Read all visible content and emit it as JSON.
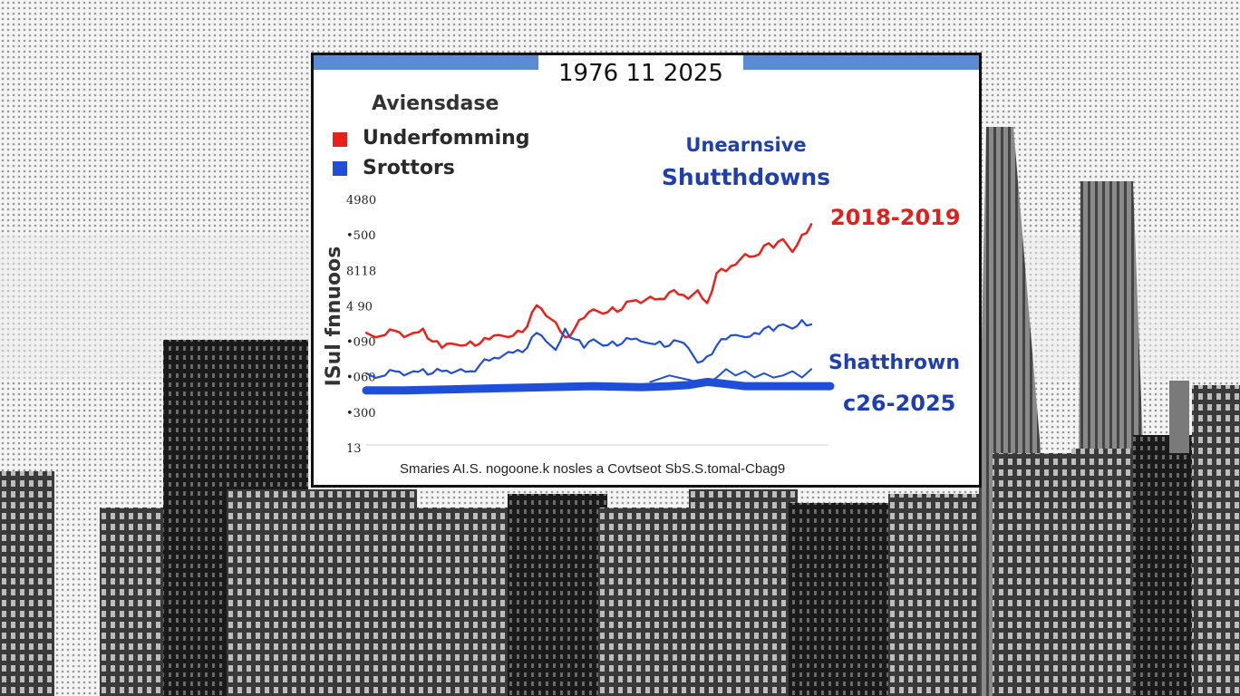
{
  "chart_data": {
    "type": "line",
    "title": "1976 11 2025",
    "legend_title": "Aviensdase",
    "legend": [
      {
        "label": "Underfomming",
        "color": "#e8211b"
      },
      {
        "label": "Srottors",
        "color": "#1f4fd8"
      }
    ],
    "ylabel": "ISul fnnuoos",
    "yticks": [
      "4980",
      "•500",
      "8118",
      "4 90",
      "•090",
      "•060",
      "•300",
      "13"
    ],
    "source": "Smaries AI.S. nogoone.k nosles a Covtseot SbS.S.tomal-Cbag9",
    "annotations": {
      "top_line1": "Unearnsive",
      "top_line2": "Shutthdowns",
      "red_period": "2018-2019",
      "blue_label": "Shatthrown",
      "blue_period": "c26-2025"
    },
    "x": {
      "start": 1976,
      "end": 2025
    },
    "y_range": [
      0,
      100
    ],
    "series": [
      {
        "name": "Underfomming",
        "color": "#e8211b",
        "values": [
          [
            1976,
            42
          ],
          [
            1978,
            41
          ],
          [
            1979,
            43
          ],
          [
            1980,
            40
          ],
          [
            1981,
            42
          ],
          [
            1982,
            44
          ],
          [
            1983,
            38
          ],
          [
            1984,
            35
          ],
          [
            1985,
            37
          ],
          [
            1986,
            36
          ],
          [
            1987,
            38
          ],
          [
            1988,
            37
          ],
          [
            1989,
            39
          ],
          [
            1990,
            41
          ],
          [
            1991,
            40
          ],
          [
            1992,
            43
          ],
          [
            1993,
            45
          ],
          [
            1994,
            55
          ],
          [
            1995,
            50
          ],
          [
            1996,
            47
          ],
          [
            1997,
            40
          ],
          [
            1998,
            44
          ],
          [
            1999,
            49
          ],
          [
            2000,
            53
          ],
          [
            2001,
            51
          ],
          [
            2002,
            54
          ],
          [
            2003,
            53
          ],
          [
            2004,
            57
          ],
          [
            2005,
            56
          ],
          [
            2006,
            59
          ],
          [
            2007,
            58
          ],
          [
            2008,
            61
          ],
          [
            2009,
            60
          ],
          [
            2010,
            58
          ],
          [
            2011,
            62
          ],
          [
            2012,
            56
          ],
          [
            2013,
            70
          ],
          [
            2014,
            71
          ],
          [
            2015,
            74
          ],
          [
            2016,
            79
          ],
          [
            2017,
            78
          ],
          [
            2018,
            83
          ],
          [
            2019,
            82
          ],
          [
            2020,
            86
          ],
          [
            2021,
            80
          ],
          [
            2022,
            88
          ],
          [
            2023,
            93
          ]
        ]
      },
      {
        "name": "Srottors",
        "color": "#1f4fd8",
        "values": [
          [
            1976,
            23
          ],
          [
            1978,
            22
          ],
          [
            1979,
            24
          ],
          [
            1980,
            22
          ],
          [
            1981,
            24
          ],
          [
            1982,
            25
          ],
          [
            1983,
            23
          ],
          [
            1984,
            24
          ],
          [
            1985,
            23
          ],
          [
            1986,
            25
          ],
          [
            1987,
            24
          ],
          [
            1988,
            27
          ],
          [
            1989,
            29
          ],
          [
            1990,
            30
          ],
          [
            1991,
            33
          ],
          [
            1992,
            34
          ],
          [
            1993,
            35
          ],
          [
            1994,
            42
          ],
          [
            1995,
            38
          ],
          [
            1996,
            34
          ],
          [
            1997,
            44
          ],
          [
            1998,
            39
          ],
          [
            1999,
            35
          ],
          [
            2000,
            39
          ],
          [
            2001,
            36
          ],
          [
            2002,
            38
          ],
          [
            2003,
            37
          ],
          [
            2004,
            39
          ],
          [
            2005,
            38
          ],
          [
            2006,
            37
          ],
          [
            2007,
            38
          ],
          [
            2008,
            36
          ],
          [
            2009,
            38
          ],
          [
            2010,
            35
          ],
          [
            2011,
            28
          ],
          [
            2012,
            31
          ],
          [
            2013,
            36
          ],
          [
            2014,
            39
          ],
          [
            2015,
            41
          ],
          [
            2016,
            40
          ],
          [
            2017,
            42
          ],
          [
            2018,
            44
          ],
          [
            2019,
            43
          ],
          [
            2020,
            46
          ],
          [
            2021,
            44
          ],
          [
            2022,
            48
          ],
          [
            2023,
            46
          ]
        ]
      },
      {
        "name": "",
        "color": "#1f4fd8",
        "values": [
          [
            1976,
            15
          ],
          [
            1980,
            15
          ],
          [
            1985,
            15.5
          ],
          [
            1990,
            16
          ],
          [
            1995,
            16.5
          ],
          [
            2000,
            17
          ],
          [
            2005,
            16.5
          ],
          [
            2008,
            17
          ],
          [
            2010,
            17.5
          ],
          [
            2012,
            19
          ],
          [
            2014,
            18
          ],
          [
            2016,
            17
          ],
          [
            2020,
            17
          ],
          [
            2025,
            17
          ]
        ]
      },
      {
        "name": "",
        "color": "#1f4fd8",
        "values": [
          [
            2006,
            19
          ],
          [
            2008,
            22
          ],
          [
            2010,
            20
          ],
          [
            2012,
            18
          ],
          [
            2013,
            21
          ],
          [
            2014,
            25
          ],
          [
            2015,
            22
          ],
          [
            2016,
            24
          ],
          [
            2017,
            21
          ],
          [
            2018,
            23
          ],
          [
            2019,
            21
          ],
          [
            2020,
            22
          ],
          [
            2021,
            24
          ],
          [
            2022,
            21
          ],
          [
            2023,
            25
          ]
        ]
      }
    ]
  },
  "colors": {
    "header_bar": "#5b8bd6",
    "red": "#e8211b",
    "blue": "#1f4fd8",
    "blue_text": "#1f3fb0"
  }
}
